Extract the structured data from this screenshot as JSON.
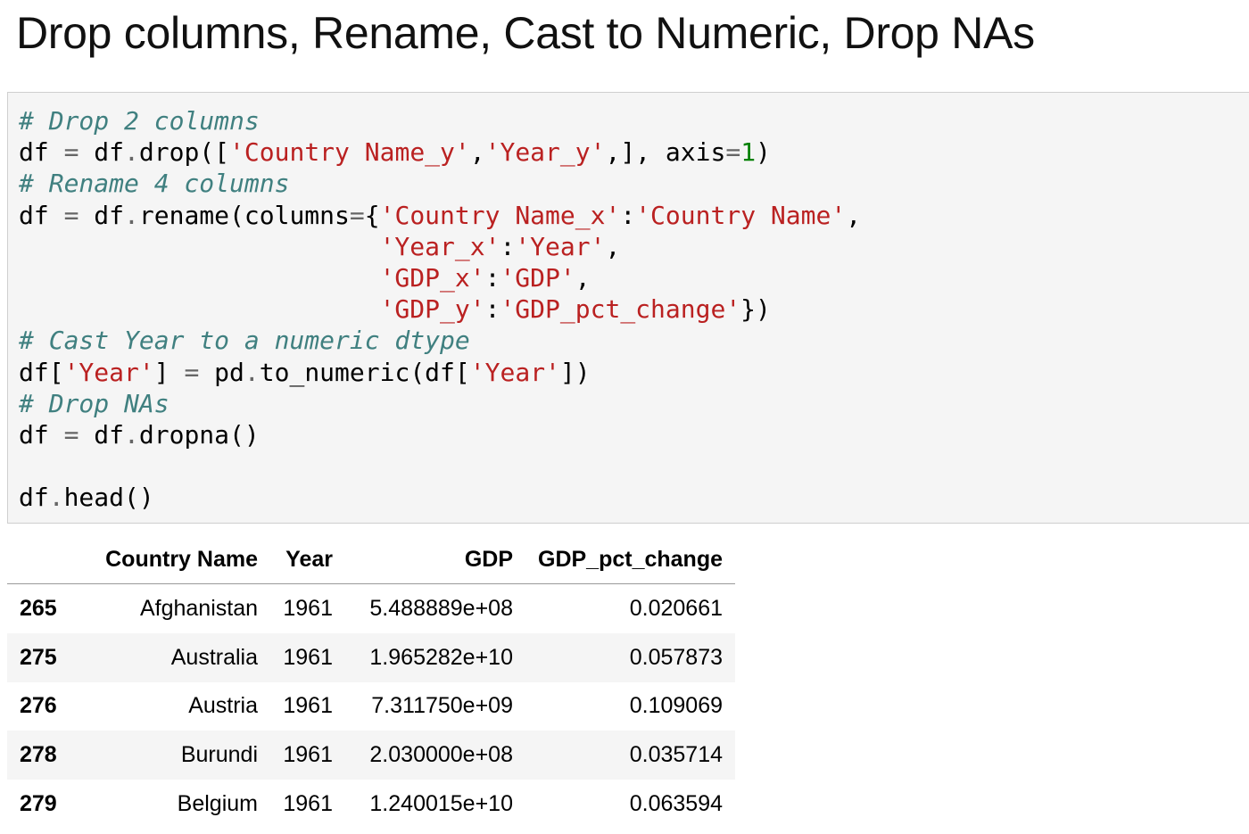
{
  "heading": "Drop columns, Rename, Cast to Numeric, Drop NAs",
  "code": {
    "lines": [
      [
        {
          "t": "# Drop 2 columns",
          "k": "com"
        }
      ],
      [
        {
          "t": "df ",
          "k": "fn"
        },
        {
          "t": "=",
          "k": "op"
        },
        {
          "t": " df",
          "k": "fn"
        },
        {
          "t": ".",
          "k": "op"
        },
        {
          "t": "drop([",
          "k": "fn"
        },
        {
          "t": "'Country Name_y'",
          "k": "str"
        },
        {
          "t": ",",
          "k": "fn"
        },
        {
          "t": "'Year_y'",
          "k": "str"
        },
        {
          "t": ",], axis",
          "k": "fn"
        },
        {
          "t": "=",
          "k": "op"
        },
        {
          "t": "1",
          "k": "num"
        },
        {
          "t": ")",
          "k": "fn"
        }
      ],
      [
        {
          "t": "# Rename 4 columns",
          "k": "com"
        }
      ],
      [
        {
          "t": "df ",
          "k": "fn"
        },
        {
          "t": "=",
          "k": "op"
        },
        {
          "t": " df",
          "k": "fn"
        },
        {
          "t": ".",
          "k": "op"
        },
        {
          "t": "rename(columns",
          "k": "fn"
        },
        {
          "t": "=",
          "k": "op"
        },
        {
          "t": "{",
          "k": "fn"
        },
        {
          "t": "'Country Name_x'",
          "k": "str"
        },
        {
          "t": ":",
          "k": "fn"
        },
        {
          "t": "'Country Name'",
          "k": "str"
        },
        {
          "t": ",",
          "k": "fn"
        }
      ],
      [
        {
          "t": "                        ",
          "k": "fn"
        },
        {
          "t": "'Year_x'",
          "k": "str"
        },
        {
          "t": ":",
          "k": "fn"
        },
        {
          "t": "'Year'",
          "k": "str"
        },
        {
          "t": ",",
          "k": "fn"
        }
      ],
      [
        {
          "t": "                        ",
          "k": "fn"
        },
        {
          "t": "'GDP_x'",
          "k": "str"
        },
        {
          "t": ":",
          "k": "fn"
        },
        {
          "t": "'GDP'",
          "k": "str"
        },
        {
          "t": ",",
          "k": "fn"
        }
      ],
      [
        {
          "t": "                        ",
          "k": "fn"
        },
        {
          "t": "'GDP_y'",
          "k": "str"
        },
        {
          "t": ":",
          "k": "fn"
        },
        {
          "t": "'GDP_pct_change'",
          "k": "str"
        },
        {
          "t": "})",
          "k": "fn"
        }
      ],
      [
        {
          "t": "# Cast Year to a numeric dtype",
          "k": "com"
        }
      ],
      [
        {
          "t": "df[",
          "k": "fn"
        },
        {
          "t": "'Year'",
          "k": "str"
        },
        {
          "t": "] ",
          "k": "fn"
        },
        {
          "t": "=",
          "k": "op"
        },
        {
          "t": " pd",
          "k": "fn"
        },
        {
          "t": ".",
          "k": "op"
        },
        {
          "t": "to_numeric(df[",
          "k": "fn"
        },
        {
          "t": "'Year'",
          "k": "str"
        },
        {
          "t": "])",
          "k": "fn"
        }
      ],
      [
        {
          "t": "# Drop NAs",
          "k": "com"
        }
      ],
      [
        {
          "t": "df ",
          "k": "fn"
        },
        {
          "t": "=",
          "k": "op"
        },
        {
          "t": " df",
          "k": "fn"
        },
        {
          "t": ".",
          "k": "op"
        },
        {
          "t": "dropna()",
          "k": "fn"
        }
      ],
      [
        {
          "t": "",
          "k": "fn"
        }
      ],
      [
        {
          "t": "df",
          "k": "fn"
        },
        {
          "t": ".",
          "k": "op"
        },
        {
          "t": "head()",
          "k": "fn"
        }
      ]
    ]
  },
  "table": {
    "columns": [
      "",
      "Country Name",
      "Year",
      "GDP",
      "GDP_pct_change"
    ],
    "rows": [
      {
        "index": "265",
        "country": "Afghanistan",
        "year": "1961",
        "gdp": "5.488889e+08",
        "pct": "0.020661"
      },
      {
        "index": "275",
        "country": "Australia",
        "year": "1961",
        "gdp": "1.965282e+10",
        "pct": "0.057873"
      },
      {
        "index": "276",
        "country": "Austria",
        "year": "1961",
        "gdp": "7.311750e+09",
        "pct": "0.109069"
      },
      {
        "index": "278",
        "country": "Burundi",
        "year": "1961",
        "gdp": "2.030000e+08",
        "pct": "0.035714"
      },
      {
        "index": "279",
        "country": "Belgium",
        "year": "1961",
        "gdp": "1.240015e+10",
        "pct": "0.063594"
      }
    ]
  }
}
